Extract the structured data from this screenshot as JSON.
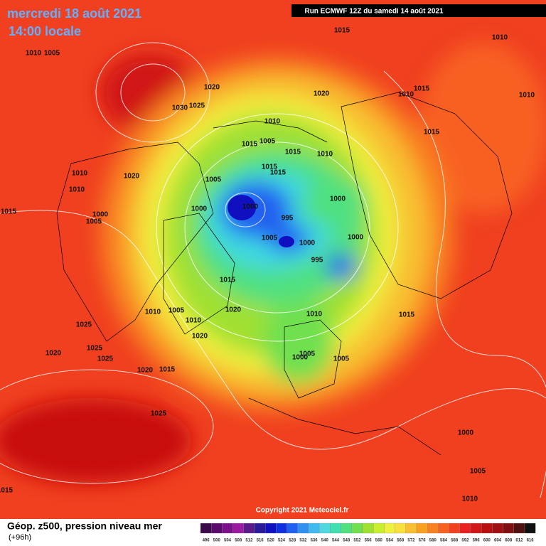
{
  "header": {
    "title": "mercredi 18 août 2021",
    "subtitle": "14:00 locale",
    "run": "Run ECMWF 12Z du samedi 14 août 2021"
  },
  "footer": {
    "label": "Géop. z500, pression niveau mer",
    "lead": "(+96h)",
    "copyright": "Copyright 2021 Meteociel.fr"
  },
  "isobar_labels": [
    1015,
    1010,
    1010,
    1005,
    1020,
    1030,
    1025,
    1020,
    1010,
    1015,
    1010,
    1010,
    1015,
    1005,
    1015,
    1015,
    1010,
    1015,
    1015,
    1020,
    1010,
    1005,
    1000,
    1000,
    1000,
    995,
    1010,
    1015,
    1000,
    1005,
    1005,
    1000,
    1000,
    995,
    1015,
    1010,
    1005,
    1020,
    1010,
    1010,
    1025,
    1020,
    1020,
    1025,
    1025,
    1020,
    1015,
    1005,
    1000,
    1005,
    1015,
    1025,
    1000,
    1005,
    1015,
    1010
  ],
  "colorbar": {
    "labels": [
      496,
      500,
      504,
      508,
      512,
      516,
      520,
      524,
      528,
      532,
      536,
      540,
      544,
      548,
      552,
      556,
      560,
      564,
      568,
      572,
      576,
      580,
      584,
      588,
      592,
      596,
      600,
      604,
      608,
      612,
      616
    ],
    "colors": [
      "#3a0a4a",
      "#5a0a6a",
      "#7a108a",
      "#9a1aa0",
      "#5a1a8a",
      "#2a1a9a",
      "#1010c0",
      "#1030e0",
      "#2060f0",
      "#3090f0",
      "#40b8f0",
      "#50d8e0",
      "#40e0b0",
      "#50e080",
      "#70e050",
      "#a0e030",
      "#c8f030",
      "#f0f040",
      "#f8e040",
      "#f8c030",
      "#f8a020",
      "#f88020",
      "#f86020",
      "#f04020",
      "#e82020",
      "#d01818",
      "#b81010",
      "#a01010",
      "#801010",
      "#501010",
      "#101010"
    ]
  }
}
